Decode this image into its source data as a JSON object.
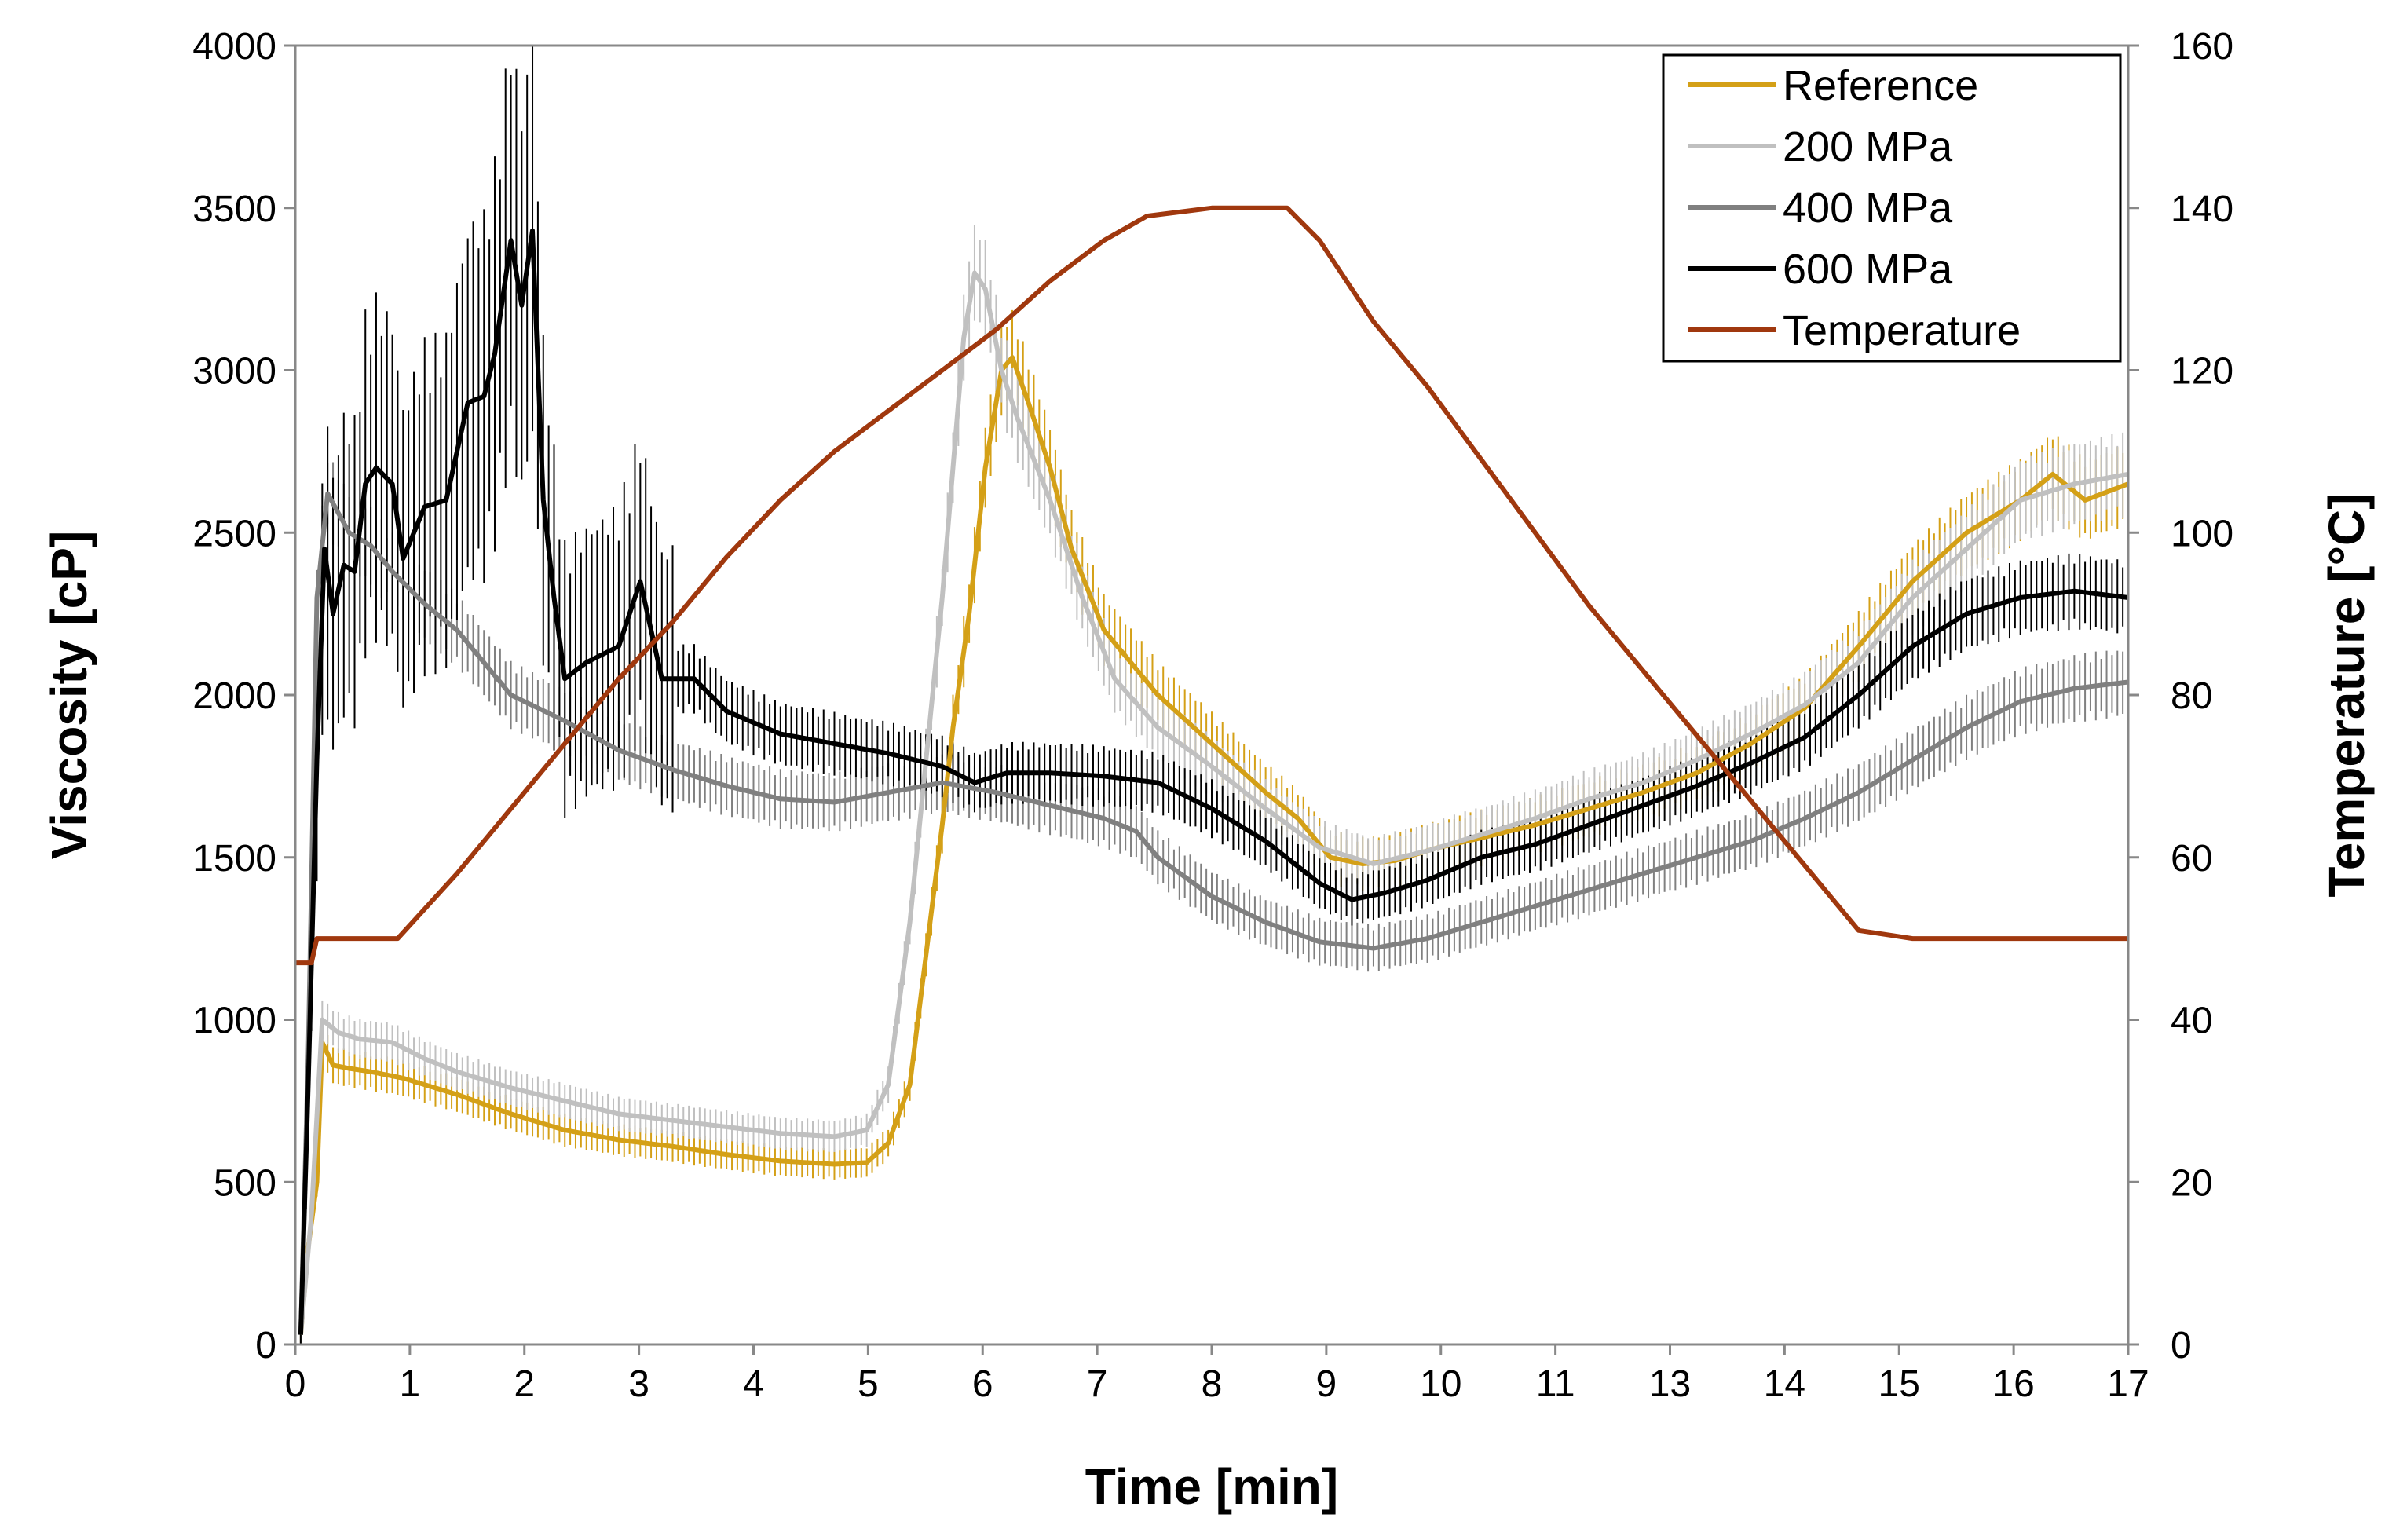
{
  "chart_data": {
    "type": "line",
    "xlabel": "Time [min]",
    "ylabel": "Viscosity [cP]",
    "y2label": "Temperature [°C]",
    "xlim": [
      0,
      17
    ],
    "ylim": [
      0,
      4000
    ],
    "y2lim": [
      0,
      160
    ],
    "x_ticks": [
      "0",
      "1",
      "2",
      "3",
      "4",
      "5",
      "6",
      "7",
      "8",
      "9",
      "10",
      "11",
      "13",
      "14",
      "15",
      "16",
      "17"
    ],
    "y_ticks": [
      "0",
      "500",
      "1000",
      "1500",
      "2000",
      "2500",
      "3000",
      "3500",
      "4000"
    ],
    "y2_ticks": [
      "0",
      "20",
      "40",
      "60",
      "80",
      "100",
      "120",
      "140",
      "160"
    ],
    "legend_position": "top-right",
    "series": [
      {
        "name": "Reference",
        "axis": "left",
        "color": "#D4A017",
        "error_bars": true,
        "points": [
          [
            0.05,
            30
          ],
          [
            0.12,
            300
          ],
          [
            0.2,
            500
          ],
          [
            0.25,
            930
          ],
          [
            0.35,
            860
          ],
          [
            0.5,
            850
          ],
          [
            0.7,
            840
          ],
          [
            1.0,
            820
          ],
          [
            1.5,
            770
          ],
          [
            2.0,
            710
          ],
          [
            2.5,
            660
          ],
          [
            3.0,
            630
          ],
          [
            3.5,
            610
          ],
          [
            4.0,
            585
          ],
          [
            4.5,
            565
          ],
          [
            5.0,
            555
          ],
          [
            5.3,
            560
          ],
          [
            5.5,
            620
          ],
          [
            5.7,
            800
          ],
          [
            5.85,
            1200
          ],
          [
            6.0,
            1600
          ],
          [
            6.1,
            1900
          ],
          [
            6.25,
            2250
          ],
          [
            6.4,
            2700
          ],
          [
            6.55,
            3000
          ],
          [
            6.65,
            3040
          ],
          [
            6.8,
            2900
          ],
          [
            7.0,
            2700
          ],
          [
            7.2,
            2450
          ],
          [
            7.5,
            2200
          ],
          [
            8.0,
            2000
          ],
          [
            8.5,
            1850
          ],
          [
            9.0,
            1700
          ],
          [
            9.3,
            1620
          ],
          [
            9.6,
            1500
          ],
          [
            9.9,
            1480
          ],
          [
            10.2,
            1490
          ],
          [
            10.6,
            1530
          ],
          [
            11.0,
            1560
          ],
          [
            11.5,
            1600
          ],
          [
            12.0,
            1650
          ],
          [
            12.5,
            1700
          ],
          [
            13.0,
            1760
          ],
          [
            13.5,
            1850
          ],
          [
            14.0,
            1960
          ],
          [
            14.5,
            2150
          ],
          [
            15.0,
            2350
          ],
          [
            15.5,
            2500
          ],
          [
            16.0,
            2600
          ],
          [
            16.3,
            2680
          ],
          [
            16.6,
            2600
          ],
          [
            17.0,
            2650
          ]
        ]
      },
      {
        "name": "200 MPa",
        "axis": "left",
        "color": "#C0C0C0",
        "error_bars": true,
        "points": [
          [
            0.05,
            30
          ],
          [
            0.15,
            400
          ],
          [
            0.25,
            1000
          ],
          [
            0.4,
            960
          ],
          [
            0.6,
            940
          ],
          [
            0.9,
            930
          ],
          [
            1.2,
            880
          ],
          [
            1.5,
            840
          ],
          [
            2.0,
            790
          ],
          [
            2.5,
            750
          ],
          [
            3.0,
            710
          ],
          [
            3.5,
            690
          ],
          [
            4.0,
            670
          ],
          [
            4.5,
            650
          ],
          [
            5.0,
            640
          ],
          [
            5.3,
            660
          ],
          [
            5.5,
            800
          ],
          [
            5.7,
            1300
          ],
          [
            5.85,
            1800
          ],
          [
            6.0,
            2300
          ],
          [
            6.1,
            2700
          ],
          [
            6.2,
            3100
          ],
          [
            6.3,
            3300
          ],
          [
            6.4,
            3250
          ],
          [
            6.55,
            3000
          ],
          [
            6.7,
            2850
          ],
          [
            7.0,
            2600
          ],
          [
            7.3,
            2300
          ],
          [
            7.6,
            2050
          ],
          [
            8.0,
            1900
          ],
          [
            8.5,
            1780
          ],
          [
            9.0,
            1650
          ],
          [
            9.5,
            1530
          ],
          [
            10.0,
            1480
          ],
          [
            10.5,
            1520
          ],
          [
            11.0,
            1570
          ],
          [
            11.5,
            1620
          ],
          [
            12.0,
            1680
          ],
          [
            12.5,
            1730
          ],
          [
            13.0,
            1800
          ],
          [
            13.5,
            1880
          ],
          [
            14.0,
            1970
          ],
          [
            14.5,
            2100
          ],
          [
            15.0,
            2300
          ],
          [
            15.5,
            2450
          ],
          [
            16.0,
            2600
          ],
          [
            16.5,
            2650
          ],
          [
            17.0,
            2680
          ]
        ]
      },
      {
        "name": "400 MPa",
        "axis": "left",
        "color": "#808080",
        "error_bars": true,
        "points": [
          [
            0.05,
            30
          ],
          [
            0.12,
            900
          ],
          [
            0.2,
            2300
          ],
          [
            0.3,
            2620
          ],
          [
            0.5,
            2500
          ],
          [
            0.7,
            2460
          ],
          [
            0.9,
            2380
          ],
          [
            1.2,
            2280
          ],
          [
            1.5,
            2200
          ],
          [
            2.0,
            2000
          ],
          [
            2.5,
            1920
          ],
          [
            3.0,
            1830
          ],
          [
            3.5,
            1770
          ],
          [
            4.0,
            1720
          ],
          [
            4.5,
            1680
          ],
          [
            5.0,
            1670
          ],
          [
            5.5,
            1700
          ],
          [
            6.0,
            1730
          ],
          [
            6.5,
            1700
          ],
          [
            7.0,
            1660
          ],
          [
            7.5,
            1620
          ],
          [
            7.8,
            1580
          ],
          [
            8.0,
            1500
          ],
          [
            8.5,
            1380
          ],
          [
            9.0,
            1300
          ],
          [
            9.5,
            1240
          ],
          [
            10.0,
            1220
          ],
          [
            10.5,
            1250
          ],
          [
            11.0,
            1300
          ],
          [
            11.5,
            1350
          ],
          [
            12.0,
            1400
          ],
          [
            12.5,
            1450
          ],
          [
            13.0,
            1500
          ],
          [
            13.5,
            1550
          ],
          [
            14.0,
            1620
          ],
          [
            14.5,
            1700
          ],
          [
            15.0,
            1800
          ],
          [
            15.5,
            1900
          ],
          [
            16.0,
            1980
          ],
          [
            16.5,
            2020
          ],
          [
            17.0,
            2040
          ]
        ]
      },
      {
        "name": "600 MPa",
        "axis": "left",
        "color": "#000000",
        "error_bars": true,
        "points": [
          [
            0.05,
            30
          ],
          [
            0.12,
            800
          ],
          [
            0.2,
            1800
          ],
          [
            0.27,
            2450
          ],
          [
            0.35,
            2250
          ],
          [
            0.45,
            2400
          ],
          [
            0.55,
            2380
          ],
          [
            0.65,
            2650
          ],
          [
            0.75,
            2700
          ],
          [
            0.9,
            2650
          ],
          [
            1.0,
            2420
          ],
          [
            1.2,
            2580
          ],
          [
            1.4,
            2600
          ],
          [
            1.6,
            2900
          ],
          [
            1.75,
            2920
          ],
          [
            1.85,
            3050
          ],
          [
            2.0,
            3400
          ],
          [
            2.1,
            3200
          ],
          [
            2.2,
            3430
          ],
          [
            2.3,
            2600
          ],
          [
            2.4,
            2300
          ],
          [
            2.5,
            2050
          ],
          [
            2.7,
            2100
          ],
          [
            3.0,
            2150
          ],
          [
            3.2,
            2350
          ],
          [
            3.4,
            2050
          ],
          [
            3.7,
            2050
          ],
          [
            4.0,
            1950
          ],
          [
            4.5,
            1880
          ],
          [
            5.0,
            1850
          ],
          [
            5.5,
            1820
          ],
          [
            6.0,
            1780
          ],
          [
            6.3,
            1730
          ],
          [
            6.6,
            1760
          ],
          [
            7.0,
            1760
          ],
          [
            7.5,
            1750
          ],
          [
            8.0,
            1730
          ],
          [
            8.5,
            1650
          ],
          [
            9.0,
            1550
          ],
          [
            9.5,
            1420
          ],
          [
            9.8,
            1370
          ],
          [
            10.1,
            1390
          ],
          [
            10.5,
            1430
          ],
          [
            11.0,
            1500
          ],
          [
            11.5,
            1540
          ],
          [
            12.0,
            1600
          ],
          [
            12.5,
            1660
          ],
          [
            13.0,
            1720
          ],
          [
            13.5,
            1790
          ],
          [
            14.0,
            1870
          ],
          [
            14.5,
            2000
          ],
          [
            15.0,
            2150
          ],
          [
            15.5,
            2250
          ],
          [
            16.0,
            2300
          ],
          [
            16.5,
            2320
          ],
          [
            17.0,
            2300
          ]
        ]
      },
      {
        "name": "Temperature",
        "axis": "right",
        "color": "#A0380E",
        "error_bars": false,
        "points": [
          [
            0,
            47
          ],
          [
            0.15,
            47
          ],
          [
            0.2,
            50
          ],
          [
            0.95,
            50
          ],
          [
            1.5,
            58
          ],
          [
            2.0,
            66
          ],
          [
            2.5,
            74
          ],
          [
            3.0,
            82
          ],
          [
            3.5,
            89
          ],
          [
            4.0,
            97
          ],
          [
            4.5,
            104
          ],
          [
            5.0,
            110
          ],
          [
            5.5,
            115
          ],
          [
            6.0,
            120
          ],
          [
            6.5,
            125
          ],
          [
            7.0,
            131
          ],
          [
            7.5,
            136
          ],
          [
            7.9,
            139
          ],
          [
            8.5,
            140
          ],
          [
            9.2,
            140
          ],
          [
            9.5,
            136
          ],
          [
            10.0,
            126
          ],
          [
            10.5,
            118
          ],
          [
            11.0,
            109
          ],
          [
            11.5,
            100
          ],
          [
            12.0,
            91
          ],
          [
            12.5,
            83
          ],
          [
            13.0,
            75
          ],
          [
            13.5,
            67
          ],
          [
            14.0,
            59
          ],
          [
            14.5,
            51
          ],
          [
            15.0,
            50
          ],
          [
            17.0,
            50
          ]
        ]
      }
    ]
  }
}
